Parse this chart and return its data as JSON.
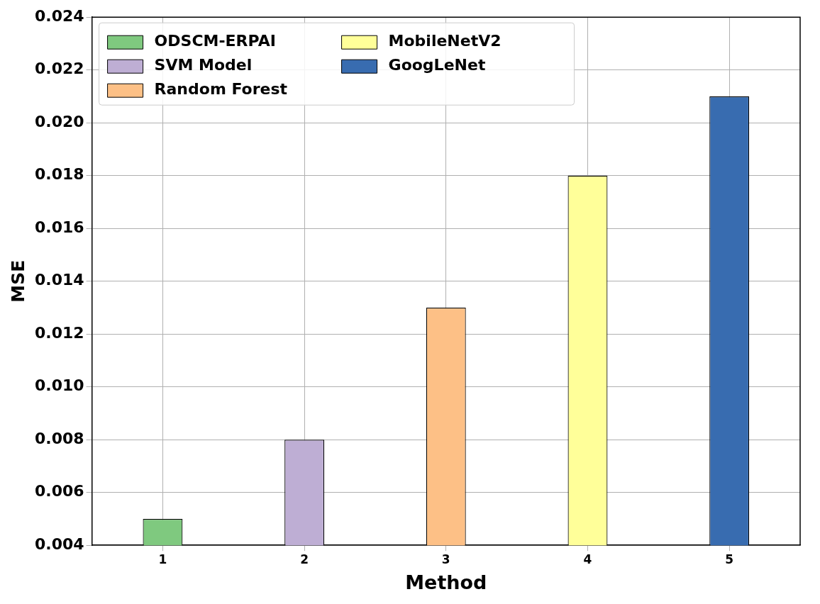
{
  "chart_data": {
    "type": "bar",
    "xlabel": "Method",
    "ylabel": "MSE",
    "categories": [
      "1",
      "2",
      "3",
      "4",
      "5"
    ],
    "series": [
      {
        "name": "ODSCM-ERPAI",
        "color": "#7fc97f",
        "values": [
          0.005,
          null,
          null,
          null,
          null
        ]
      },
      {
        "name": "SVM Model",
        "color": "#beaed4",
        "values": [
          null,
          0.008,
          null,
          null,
          null
        ]
      },
      {
        "name": "Random Forest",
        "color": "#fdc086",
        "values": [
          null,
          null,
          0.013,
          null,
          null
        ]
      },
      {
        "name": "MobileNetV2",
        "color": "#ffff99",
        "values": [
          null,
          null,
          null,
          0.018,
          null
        ]
      },
      {
        "name": "GoogLeNet",
        "color": "#386cb0",
        "values": [
          null,
          null,
          null,
          null,
          0.021
        ]
      }
    ],
    "ylim": [
      0.004,
      0.024
    ],
    "yticks": [
      {
        "value": 0.004,
        "label": "0.004"
      },
      {
        "value": 0.006,
        "label": "0.006"
      },
      {
        "value": 0.008,
        "label": "0.008"
      },
      {
        "value": 0.01,
        "label": "0.010"
      },
      {
        "value": 0.012,
        "label": "0.012"
      },
      {
        "value": 0.014,
        "label": "0.014"
      },
      {
        "value": 0.016,
        "label": "0.016"
      },
      {
        "value": 0.018,
        "label": "0.018"
      },
      {
        "value": 0.02,
        "label": "0.020"
      },
      {
        "value": 0.022,
        "label": "0.022"
      },
      {
        "value": 0.024,
        "label": "0.024"
      }
    ],
    "grid": true,
    "legend": "top left"
  }
}
